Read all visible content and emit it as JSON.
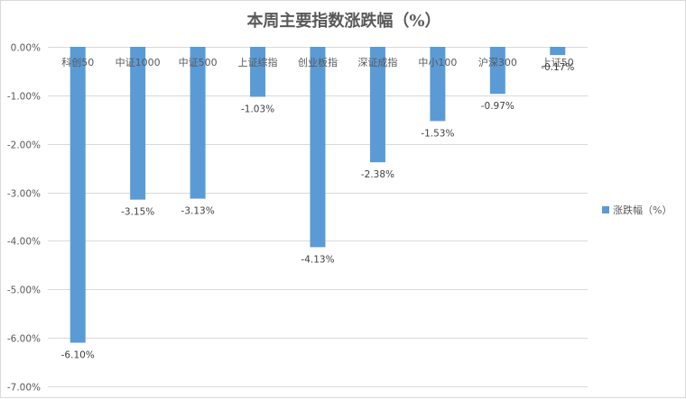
{
  "chart_data": {
    "type": "bar",
    "title": "本周主要指数涨跌幅（%）",
    "categories": [
      "科创50",
      "中证1000",
      "中证500",
      "上证综指",
      "创业板指",
      "深证成指",
      "中小100",
      "沪深300",
      "上证50"
    ],
    "series": [
      {
        "name": "涨跌幅（%）",
        "values": [
          -6.1,
          -3.15,
          -3.13,
          -1.03,
          -4.13,
          -2.38,
          -1.53,
          -0.97,
          -0.17
        ],
        "data_labels": [
          "-6.10%",
          "-3.15%",
          "-3.13%",
          "-1.03%",
          "-4.13%",
          "-2.38%",
          "-1.53%",
          "-0.97%",
          "-0.17%"
        ],
        "color": "#5b9bd5"
      }
    ],
    "y_ticks": [
      0,
      -1,
      -2,
      -3,
      -4,
      -5,
      -6,
      -7
    ],
    "y_tick_labels": [
      "0.00%",
      "-1.00%",
      "-2.00%",
      "-3.00%",
      "-4.00%",
      "-5.00%",
      "-6.00%",
      "-7.00%"
    ],
    "ylim": [
      -7,
      0
    ],
    "grid": true,
    "legend_position": "right"
  }
}
